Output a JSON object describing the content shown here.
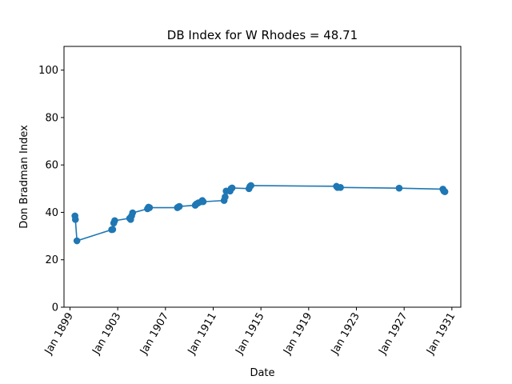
{
  "chart_data": {
    "type": "line",
    "title": "DB Index for W Rhodes = 48.71",
    "xlabel": "Date",
    "ylabel": "Don Bradman Index",
    "ylim": [
      0,
      110
    ],
    "xlim": [
      "1898-07-01",
      "1931-10-01"
    ],
    "grid": false,
    "color": "#1f77b4",
    "x_ticks": [
      {
        "date": "1899-01-01",
        "label": "Jan 1899"
      },
      {
        "date": "1903-01-01",
        "label": "Jan 1903"
      },
      {
        "date": "1907-01-01",
        "label": "Jan 1907"
      },
      {
        "date": "1911-01-01",
        "label": "Jan 1911"
      },
      {
        "date": "1915-01-01",
        "label": "Jan 1915"
      },
      {
        "date": "1919-01-01",
        "label": "Jan 1919"
      },
      {
        "date": "1923-01-01",
        "label": "Jan 1923"
      },
      {
        "date": "1927-01-01",
        "label": "Jan 1927"
      },
      {
        "date": "1931-01-01",
        "label": "Jan 1931"
      }
    ],
    "y_ticks": [
      0,
      20,
      40,
      60,
      80,
      100
    ],
    "series": [
      {
        "name": "",
        "points": [
          {
            "x": "1899-06-01",
            "y": 38.5
          },
          {
            "x": "1899-06-15",
            "y": 37.0
          },
          {
            "x": "1899-08-01",
            "y": 28.0
          },
          {
            "x": "1902-07-01",
            "y": 32.7
          },
          {
            "x": "1902-08-01",
            "y": 32.8
          },
          {
            "x": "1902-09-01",
            "y": 35.5
          },
          {
            "x": "1902-10-01",
            "y": 36.5
          },
          {
            "x": "1904-01-01",
            "y": 37.5
          },
          {
            "x": "1904-02-01",
            "y": 37.0
          },
          {
            "x": "1904-03-01",
            "y": 38.5
          },
          {
            "x": "1904-04-01",
            "y": 39.8
          },
          {
            "x": "1905-07-01",
            "y": 41.5
          },
          {
            "x": "1905-08-01",
            "y": 42.2
          },
          {
            "x": "1905-09-01",
            "y": 42.0
          },
          {
            "x": "1908-01-01",
            "y": 42.0
          },
          {
            "x": "1908-02-01",
            "y": 42.3
          },
          {
            "x": "1908-03-01",
            "y": 42.5
          },
          {
            "x": "1909-07-01",
            "y": 43.0
          },
          {
            "x": "1909-08-01",
            "y": 43.5
          },
          {
            "x": "1909-10-01",
            "y": 44.0
          },
          {
            "x": "1910-01-01",
            "y": 44.5
          },
          {
            "x": "1910-02-01",
            "y": 45.0
          },
          {
            "x": "1910-03-01",
            "y": 44.5
          },
          {
            "x": "1911-12-01",
            "y": 45.0
          },
          {
            "x": "1912-01-01",
            "y": 46.5
          },
          {
            "x": "1912-02-01",
            "y": 49.0
          },
          {
            "x": "1912-06-01",
            "y": 49.0
          },
          {
            "x": "1912-07-01",
            "y": 50.0
          },
          {
            "x": "1912-08-01",
            "y": 50.3
          },
          {
            "x": "1914-01-01",
            "y": 50.0
          },
          {
            "x": "1914-02-01",
            "y": 51.0
          },
          {
            "x": "1914-03-01",
            "y": 51.3
          },
          {
            "x": "1921-05-01",
            "y": 51.0
          },
          {
            "x": "1921-06-01",
            "y": 50.5
          },
          {
            "x": "1921-09-01",
            "y": 50.5
          },
          {
            "x": "1926-08-01",
            "y": 50.2
          },
          {
            "x": "1930-04-01",
            "y": 49.8
          },
          {
            "x": "1930-05-01",
            "y": 49.0
          },
          {
            "x": "1930-06-01",
            "y": 48.71
          }
        ]
      }
    ]
  }
}
